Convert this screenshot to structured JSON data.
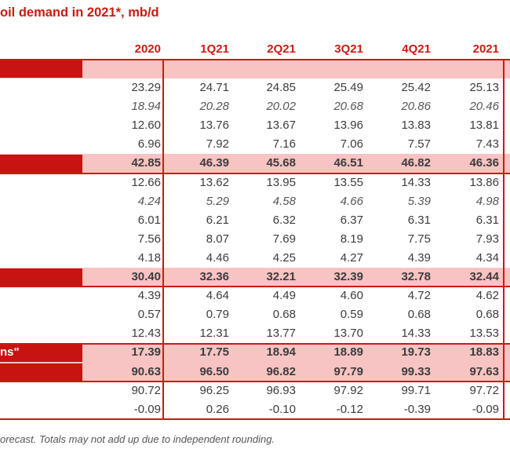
{
  "title": "oil demand in 2021*, mb/d",
  "columns": [
    "2020",
    "1Q21",
    "2Q21",
    "3Q21",
    "4Q21",
    "2021"
  ],
  "rows": [
    {
      "kind": "section",
      "label": "",
      "values": [
        "",
        "",
        "",
        "",
        "",
        ""
      ]
    },
    {
      "kind": "plain",
      "values": [
        "23.29",
        "24.71",
        "24.85",
        "25.49",
        "25.42",
        "25.13"
      ]
    },
    {
      "kind": "italic",
      "values": [
        "18.94",
        "20.28",
        "20.02",
        "20.68",
        "20.86",
        "20.46"
      ]
    },
    {
      "kind": "plain",
      "values": [
        "12.60",
        "13.76",
        "13.67",
        "13.96",
        "13.83",
        "13.81"
      ]
    },
    {
      "kind": "plain",
      "values": [
        "6.96",
        "7.92",
        "7.16",
        "7.06",
        "7.57",
        "7.43"
      ]
    },
    {
      "kind": "total",
      "label": "",
      "values": [
        "42.85",
        "46.39",
        "45.68",
        "46.51",
        "46.82",
        "46.36"
      ]
    },
    {
      "kind": "plain",
      "values": [
        "12.66",
        "13.62",
        "13.95",
        "13.55",
        "14.33",
        "13.86"
      ]
    },
    {
      "kind": "italic",
      "values": [
        "4.24",
        "5.29",
        "4.58",
        "4.66",
        "5.39",
        "4.98"
      ]
    },
    {
      "kind": "plain",
      "values": [
        "6.01",
        "6.21",
        "6.32",
        "6.37",
        "6.31",
        "6.31"
      ]
    },
    {
      "kind": "plain",
      "values": [
        "7.56",
        "8.07",
        "7.69",
        "8.19",
        "7.75",
        "7.93"
      ]
    },
    {
      "kind": "plain",
      "values": [
        "4.18",
        "4.46",
        "4.25",
        "4.27",
        "4.39",
        "4.34"
      ]
    },
    {
      "kind": "total",
      "label": "",
      "values": [
        "30.40",
        "32.36",
        "32.21",
        "32.39",
        "32.78",
        "32.44"
      ]
    },
    {
      "kind": "plain",
      "values": [
        "4.39",
        "4.64",
        "4.49",
        "4.60",
        "4.72",
        "4.62"
      ]
    },
    {
      "kind": "plain",
      "values": [
        "0.57",
        "0.79",
        "0.68",
        "0.59",
        "0.68",
        "0.68"
      ]
    },
    {
      "kind": "plain",
      "values": [
        "12.43",
        "12.31",
        "13.77",
        "13.70",
        "14.33",
        "13.53"
      ]
    },
    {
      "kind": "total",
      "label": "ns\"",
      "values": [
        "17.39",
        "17.75",
        "18.94",
        "18.89",
        "19.73",
        "18.83"
      ]
    },
    {
      "kind": "total",
      "label": "",
      "values": [
        "90.63",
        "96.50",
        "96.82",
        "97.79",
        "99.33",
        "97.63"
      ]
    },
    {
      "kind": "plain",
      "values": [
        "90.72",
        "96.25",
        "96.93",
        "97.92",
        "99.71",
        "97.72"
      ]
    },
    {
      "kind": "plain",
      "values": [
        "-0.09",
        "0.26",
        "-0.10",
        "-0.12",
        "-0.39",
        "-0.09"
      ]
    }
  ],
  "footnote": "orecast. Totals may not add up due to independent rounding.",
  "colors": {
    "accent": "#cc1a10",
    "band": "#f8c3c3",
    "label_block": "#c81410"
  }
}
